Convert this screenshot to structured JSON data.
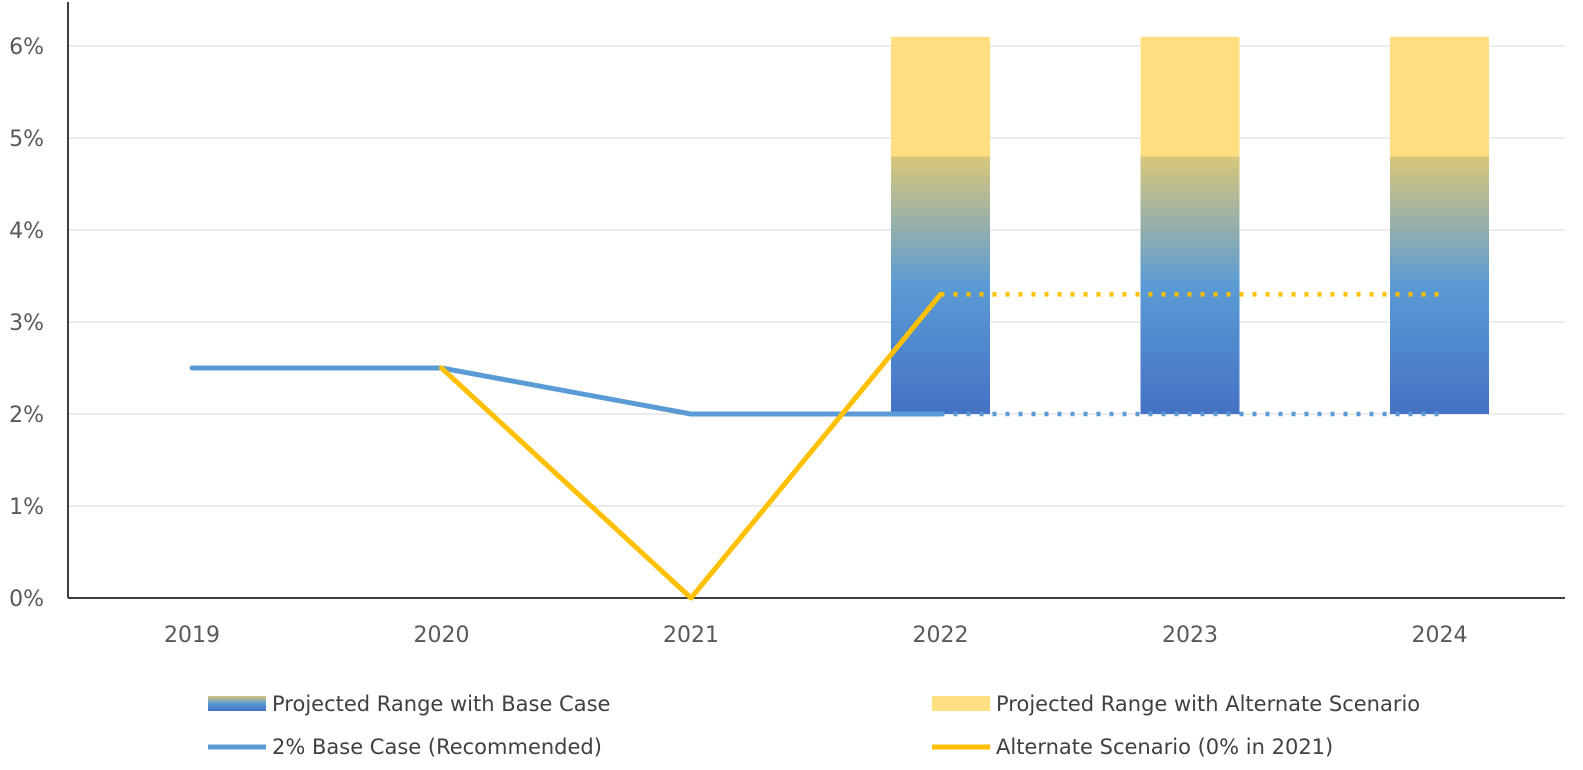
{
  "chart_data": {
    "type": "line",
    "title": "",
    "xlabel": "",
    "ylabel": "",
    "categories": [
      "2019",
      "2020",
      "2021",
      "2022",
      "2023",
      "2024"
    ],
    "ylim": [
      0,
      6
    ],
    "yticks": [
      0,
      1,
      2,
      3,
      4,
      5,
      6
    ],
    "ytick_labels": [
      "0%",
      "1%",
      "2%",
      "3%",
      "4%",
      "5%",
      "6%"
    ],
    "grid": "horizontal",
    "legend_position": "bottom",
    "series": [
      {
        "name": "2% Base Case (Recommended)",
        "type": "line",
        "color": "#5b9bd5",
        "values": [
          2.5,
          2.5,
          2.0,
          2.0,
          2.0,
          2.0
        ],
        "solid_through": "2022",
        "dotted_after": "2022"
      },
      {
        "name": "Alternate Scenario (0% in 2021)",
        "type": "line",
        "color": "#ffc000",
        "values": [
          null,
          2.5,
          0.0,
          3.3,
          3.3,
          3.3
        ],
        "solid_through": "2022",
        "dotted_after": "2022"
      }
    ],
    "ranges": [
      {
        "name": "Projected Range with Base Case",
        "style": "gradient",
        "color_top": "#d9c77a",
        "color_mid": "#5b9bd5",
        "color_bottom": "#4472c4",
        "categories": [
          "2022",
          "2023",
          "2024"
        ],
        "low": [
          2.0,
          2.0,
          2.0
        ],
        "high": [
          4.8,
          4.8,
          4.8
        ]
      },
      {
        "name": "Projected Range with Alternate Scenario",
        "style": "solid",
        "color": "#ffdf80",
        "categories": [
          "2022",
          "2023",
          "2024"
        ],
        "low": [
          4.8,
          4.8,
          4.8
        ],
        "high": [
          6.1,
          6.1,
          6.1
        ]
      }
    ],
    "legend": [
      {
        "label": "Projected Range with Base Case",
        "kind": "gradient-swatch"
      },
      {
        "label": "Projected Range with Alternate Scenario",
        "kind": "solid-swatch",
        "color": "#ffdf80"
      },
      {
        "label": "2% Base Case (Recommended)",
        "kind": "line",
        "color": "#5b9bd5"
      },
      {
        "label": "Alternate Scenario (0% in 2021)",
        "kind": "line",
        "color": "#ffc000"
      }
    ]
  }
}
